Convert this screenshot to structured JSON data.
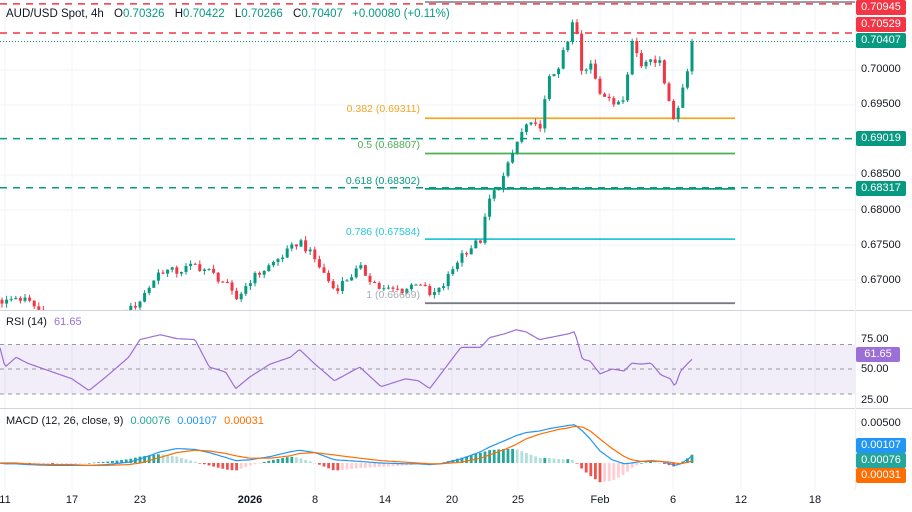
{
  "header": {
    "symbol": "AUD/USD Spot, 4h",
    "open_label": "O",
    "open": "0.70326",
    "high_label": "H",
    "high": "0.70422",
    "low_label": "L",
    "low": "0.70266",
    "close_label": "C",
    "close": "0.70407",
    "change": "+0.00080 (+0.11%)"
  },
  "price_axis": {
    "ticks": [
      "0.70000",
      "0.69500",
      "0.68500",
      "0.68000",
      "0.67500",
      "0.67000"
    ],
    "tags": {
      "resistance_high": "0.70945",
      "resistance": "0.70529",
      "last_price": "0.70407",
      "support_1": "0.69019",
      "support_2": "0.68317"
    }
  },
  "fibonacci": [
    {
      "label": "0.382 (0.69311)",
      "level": 0.69311,
      "color": "#f5a623"
    },
    {
      "label": "0.5 (0.68807)",
      "level": 0.68807,
      "color": "#4caf50"
    },
    {
      "label": "0.618 (0.68302)",
      "level": 0.68302,
      "color": "#089981"
    },
    {
      "label": "0.786 (0.67584)",
      "level": 0.67584,
      "color": "#26c6da"
    },
    {
      "label": "1 (0.66669)",
      "level": 0.66669,
      "color": "#787b86"
    }
  ],
  "horizontal_levels": {
    "red": [
      0.70945,
      0.70529
    ],
    "green": [
      0.69019,
      0.68317
    ],
    "last": 0.70407
  },
  "rsi": {
    "title": "RSI (14)",
    "value": "61.65",
    "ticks": [
      "75.00",
      "50.00",
      "25.00"
    ],
    "tag": "61.65"
  },
  "macd": {
    "title": "MACD (12, 26, close, 9)",
    "histogram": "0.00076",
    "macd": "0.00107",
    "signal": "0.00031",
    "ticks": [
      "0.00500"
    ],
    "tags": {
      "macd": "0.00107",
      "histogram": "0.00076",
      "signal": "0.00031"
    }
  },
  "time_axis": [
    "11",
    "17",
    "23",
    "2026",
    "8",
    "14",
    "20",
    "25",
    "Feb",
    "6",
    "12",
    "18"
  ],
  "colors": {
    "up": "#089981",
    "down": "#f23645",
    "rsi": "#9c6fd6",
    "macd": "#2196f3",
    "signal": "#ff6d00",
    "hist_up": "#26a69a",
    "hist_down": "#ef5350"
  },
  "chart_data": {
    "type": "candlestick",
    "symbol": "AUD/USD Spot",
    "interval": "4h",
    "ylim": [
      0.6655,
      0.71
    ],
    "series": [
      {
        "t": "2025-12-10 12:00",
        "price": 0.6672,
        "rsi": 74,
        "macd": 0.0,
        "signal": 0.0
      },
      {
        "t": "2025-12-11 00:00",
        "price": 0.6668,
        "rsi": 52,
        "macd": -0.0001,
        "signal": 0.0
      },
      {
        "t": "2025-12-12 00:00",
        "price": 0.6675,
        "rsi": 62,
        "macd": -0.0001,
        "signal": 0.0
      },
      {
        "t": "2025-12-13 00:00",
        "price": 0.667,
        "rsi": 56,
        "macd": -0.0002,
        "signal": -0.0001
      },
      {
        "t": "2025-12-15 00:00",
        "price": 0.6645,
        "rsi": 48,
        "macd": -0.0003,
        "signal": -0.0002
      },
      {
        "t": "2025-12-17 00:00",
        "price": 0.663,
        "rsi": 40,
        "macd": -0.0003,
        "signal": -0.0002
      },
      {
        "t": "2025-12-18 12:00",
        "price": 0.6618,
        "rsi": 28,
        "macd": -0.0003,
        "signal": -0.0003
      },
      {
        "t": "2025-12-20 00:00",
        "price": 0.6635,
        "rsi": 42,
        "macd": -0.0002,
        "signal": -0.0003
      },
      {
        "t": "2025-12-22 00:00",
        "price": 0.6655,
        "rsi": 62,
        "macd": 0.0001,
        "signal": -0.0002
      },
      {
        "t": "2025-12-23 00:00",
        "price": 0.6671,
        "rsi": 80,
        "macd": 0.0005,
        "signal": 0.0
      },
      {
        "t": "2025-12-24 16:00",
        "price": 0.6714,
        "rsi": 85,
        "macd": 0.0014,
        "signal": 0.0007
      },
      {
        "t": "2025-12-26 00:00",
        "price": 0.6712,
        "rsi": 81,
        "macd": 0.0018,
        "signal": 0.0013
      },
      {
        "t": "2025-12-27 12:00",
        "price": 0.6721,
        "rsi": 80,
        "macd": 0.0017,
        "signal": 0.0016
      },
      {
        "t": "2025-12-28 16:00",
        "price": 0.6712,
        "rsi": 52,
        "macd": 0.0013,
        "signal": 0.0015
      },
      {
        "t": "2025-12-30 00:00",
        "price": 0.6695,
        "rsi": 47,
        "macd": 0.0007,
        "signal": 0.0012
      },
      {
        "t": "2025-12-30 20:00",
        "price": 0.6671,
        "rsi": 30,
        "macd": 0.0003,
        "signal": 0.0009
      },
      {
        "t": "2026-01-01 00:00",
        "price": 0.67,
        "rsi": 42,
        "macd": 0.0004,
        "signal": 0.0006
      },
      {
        "t": "2026-01-03 04:00",
        "price": 0.6721,
        "rsi": 55,
        "macd": 0.0008,
        "signal": 0.0006
      },
      {
        "t": "2026-01-05 08:00",
        "price": 0.6743,
        "rsi": 62,
        "macd": 0.0014,
        "signal": 0.0009
      },
      {
        "t": "2026-01-06 08:00",
        "price": 0.6757,
        "rsi": 70,
        "macd": 0.0016,
        "signal": 0.0012
      },
      {
        "t": "2026-01-08 00:00",
        "price": 0.6729,
        "rsi": 55,
        "macd": 0.0013,
        "signal": 0.0013
      },
      {
        "t": "2026-01-09 16:00",
        "price": 0.6686,
        "rsi": 38,
        "macd": 0.0004,
        "signal": 0.001
      },
      {
        "t": "2026-01-11 20:00",
        "price": 0.6717,
        "rsi": 52,
        "macd": 0.0002,
        "signal": 0.0006
      },
      {
        "t": "2026-01-13 16:00",
        "price": 0.6686,
        "rsi": 32,
        "macd": 0.0,
        "signal": 0.0003
      },
      {
        "t": "2026-01-15 20:00",
        "price": 0.6686,
        "rsi": 40,
        "macd": -0.0001,
        "signal": 0.0001
      },
      {
        "t": "2026-01-17 00:00",
        "price": 0.67,
        "rsi": 38,
        "macd": -0.0001,
        "signal": 0.0
      },
      {
        "t": "2026-01-18 00:00",
        "price": 0.6677,
        "rsi": 30,
        "macd": -0.0002,
        "signal": -0.0001
      },
      {
        "t": "2026-01-19 00:00",
        "price": 0.6686,
        "rsi": 45,
        "macd": -0.0001,
        "signal": -0.0001
      },
      {
        "t": "2026-01-20 16:00",
        "price": 0.6736,
        "rsi": 72,
        "macd": 0.0005,
        "signal": 0.0001
      },
      {
        "t": "2026-01-22 04:00",
        "price": 0.6757,
        "rsi": 72,
        "macd": 0.0014,
        "signal": 0.0006
      },
      {
        "t": "2026-01-22 20:00",
        "price": 0.6814,
        "rsi": 82,
        "macd": 0.002,
        "signal": 0.001
      },
      {
        "t": "2026-01-24 00:00",
        "price": 0.685,
        "rsi": 86,
        "macd": 0.0028,
        "signal": 0.0017
      },
      {
        "t": "2026-01-24 20:00",
        "price": 0.6893,
        "rsi": 90,
        "macd": 0.0034,
        "signal": 0.0023
      },
      {
        "t": "2026-01-25 16:00",
        "price": 0.6921,
        "rsi": 88,
        "macd": 0.0038,
        "signal": 0.003
      },
      {
        "t": "2026-01-26 20:00",
        "price": 0.6917,
        "rsi": 80,
        "macd": 0.004,
        "signal": 0.0036
      },
      {
        "t": "2026-01-27 16:00",
        "price": 0.6986,
        "rsi": 82,
        "macd": 0.0043,
        "signal": 0.0039
      },
      {
        "t": "2026-01-28 12:00",
        "price": 0.7007,
        "rsi": 84,
        "macd": 0.0045,
        "signal": 0.0042
      },
      {
        "t": "2026-01-29 08:00",
        "price": 0.7043,
        "rsi": 86,
        "macd": 0.0047,
        "signal": 0.0044
      },
      {
        "t": "2026-01-29 20:00",
        "price": 0.7079,
        "rsi": 88,
        "macd": 0.0048,
        "signal": 0.0046
      },
      {
        "t": "2026-01-30 12:00",
        "price": 0.6986,
        "rsi": 60,
        "macd": 0.004,
        "signal": 0.0045
      },
      {
        "t": "2026-01-31 04:00",
        "price": 0.7014,
        "rsi": 58,
        "macd": 0.003,
        "signal": 0.004
      },
      {
        "t": "2026-02-01 00:00",
        "price": 0.6971,
        "rsi": 45,
        "macd": 0.0015,
        "signal": 0.003
      },
      {
        "t": "2026-02-01 20:00",
        "price": 0.695,
        "rsi": 50,
        "macd": 0.0004,
        "signal": 0.0018
      },
      {
        "t": "2026-02-02 16:00",
        "price": 0.6964,
        "rsi": 48,
        "macd": -0.0001,
        "signal": 0.0008
      },
      {
        "t": "2026-02-03 04:00",
        "price": 0.7043,
        "rsi": 56,
        "macd": 0.0,
        "signal": 0.0004
      },
      {
        "t": "2026-02-03 20:00",
        "price": 0.7007,
        "rsi": 55,
        "macd": 0.0002,
        "signal": 0.0002
      },
      {
        "t": "2026-02-04 12:00",
        "price": 0.7021,
        "rsi": 56,
        "macd": 0.0003,
        "signal": 0.0002
      },
      {
        "t": "2026-02-05 04:00",
        "price": 0.7007,
        "rsi": 44,
        "macd": 0.0002,
        "signal": 0.0002
      },
      {
        "t": "2026-02-05 20:00",
        "price": 0.695,
        "rsi": 40,
        "macd": -0.0001,
        "signal": 0.0001
      },
      {
        "t": "2026-02-06 04:00",
        "price": 0.6921,
        "rsi": 32,
        "macd": -0.0003,
        "signal": 0.0
      },
      {
        "t": "2026-02-06 16:00",
        "price": 0.6964,
        "rsi": 48,
        "macd": -0.0001,
        "signal": -0.0001
      },
      {
        "t": "2026-02-07 08:00",
        "price": 0.7007,
        "rsi": 56,
        "macd": 0.0005,
        "signal": 0.0001
      },
      {
        "t": "2026-02-07 20:00",
        "price": 0.70407,
        "rsi": 61.65,
        "macd": 0.00107,
        "signal": 0.00031
      }
    ]
  }
}
